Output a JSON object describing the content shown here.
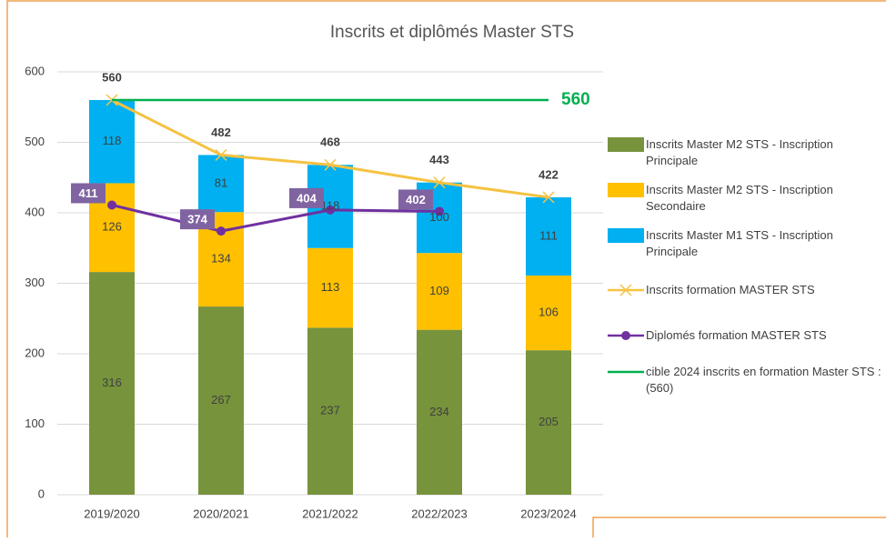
{
  "chart_data": {
    "type": "bar",
    "title": "Inscrits et diplômés Master STS",
    "categories": [
      "2019/2020",
      "2020/2021",
      "2021/2022",
      "2022/2023",
      "2023/2024"
    ],
    "ylim": [
      0,
      600
    ],
    "yticks": [
      0,
      100,
      200,
      300,
      400,
      500,
      600
    ],
    "grid": true,
    "legend": "right",
    "series": [
      {
        "name": "Inscrits Master M2 STS - Inscription Principale",
        "type": "bar",
        "color": "#77933c",
        "values": [
          316,
          267,
          237,
          234,
          205
        ]
      },
      {
        "name": "Inscrits Master M2 STS - Inscription Secondaire",
        "type": "bar",
        "color": "#ffc000",
        "values": [
          126,
          134,
          113,
          109,
          106
        ]
      },
      {
        "name": "Inscrits Master M1 STS - Inscription Principale",
        "type": "bar",
        "color": "#00b0f0",
        "values": [
          118,
          81,
          118,
          100,
          111
        ]
      },
      {
        "name": "Inscrits formation MASTER STS",
        "type": "line",
        "marker": "x",
        "color": "#f5c242",
        "values": [
          560,
          482,
          468,
          443,
          422
        ]
      },
      {
        "name": "Diplomés formation MASTER STS",
        "type": "line",
        "marker": "circle",
        "color": "#7030a0",
        "values": [
          411,
          374,
          404,
          402,
          null
        ]
      },
      {
        "name": "cible 2024 inscrits en formation Master STS : (560)",
        "type": "target",
        "color": "#00b050",
        "values": [
          560,
          560,
          560,
          560,
          560
        ]
      }
    ]
  }
}
